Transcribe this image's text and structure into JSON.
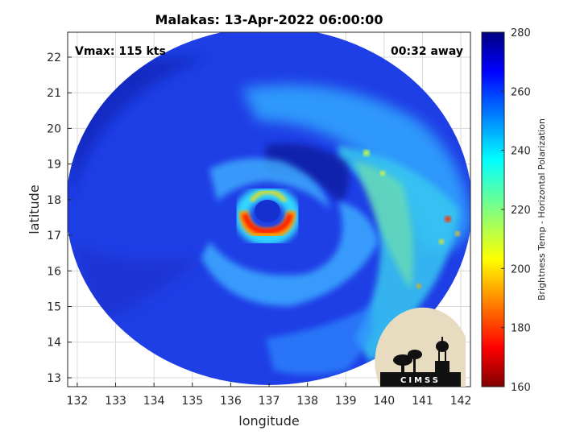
{
  "chart_data": {
    "type": "heatmap",
    "title": "Malakas: 13-Apr-2022 06:00:00",
    "xlabel": "longitude",
    "ylabel": "latitude",
    "xlim": [
      131.75,
      142.25
    ],
    "ylim": [
      12.75,
      22.7
    ],
    "xticks": [
      132,
      133,
      134,
      135,
      136,
      137,
      138,
      139,
      140,
      141,
      142
    ],
    "yticks": [
      13,
      14,
      15,
      16,
      17,
      18,
      19,
      20,
      21,
      22
    ],
    "grid": true,
    "annotations": {
      "vmax": "Vmax: 115 kts",
      "time_offset": "00:32 away"
    },
    "storm_center": {
      "lon": 137.0,
      "lat": 17.6
    },
    "colorbar": {
      "label": "Brightness Temp - Horizontal Polarization",
      "range": [
        160,
        280
      ],
      "ticks": [
        160,
        180,
        200,
        220,
        240,
        260,
        280
      ],
      "colormap": "jet"
    },
    "logo": "CIMSS"
  }
}
